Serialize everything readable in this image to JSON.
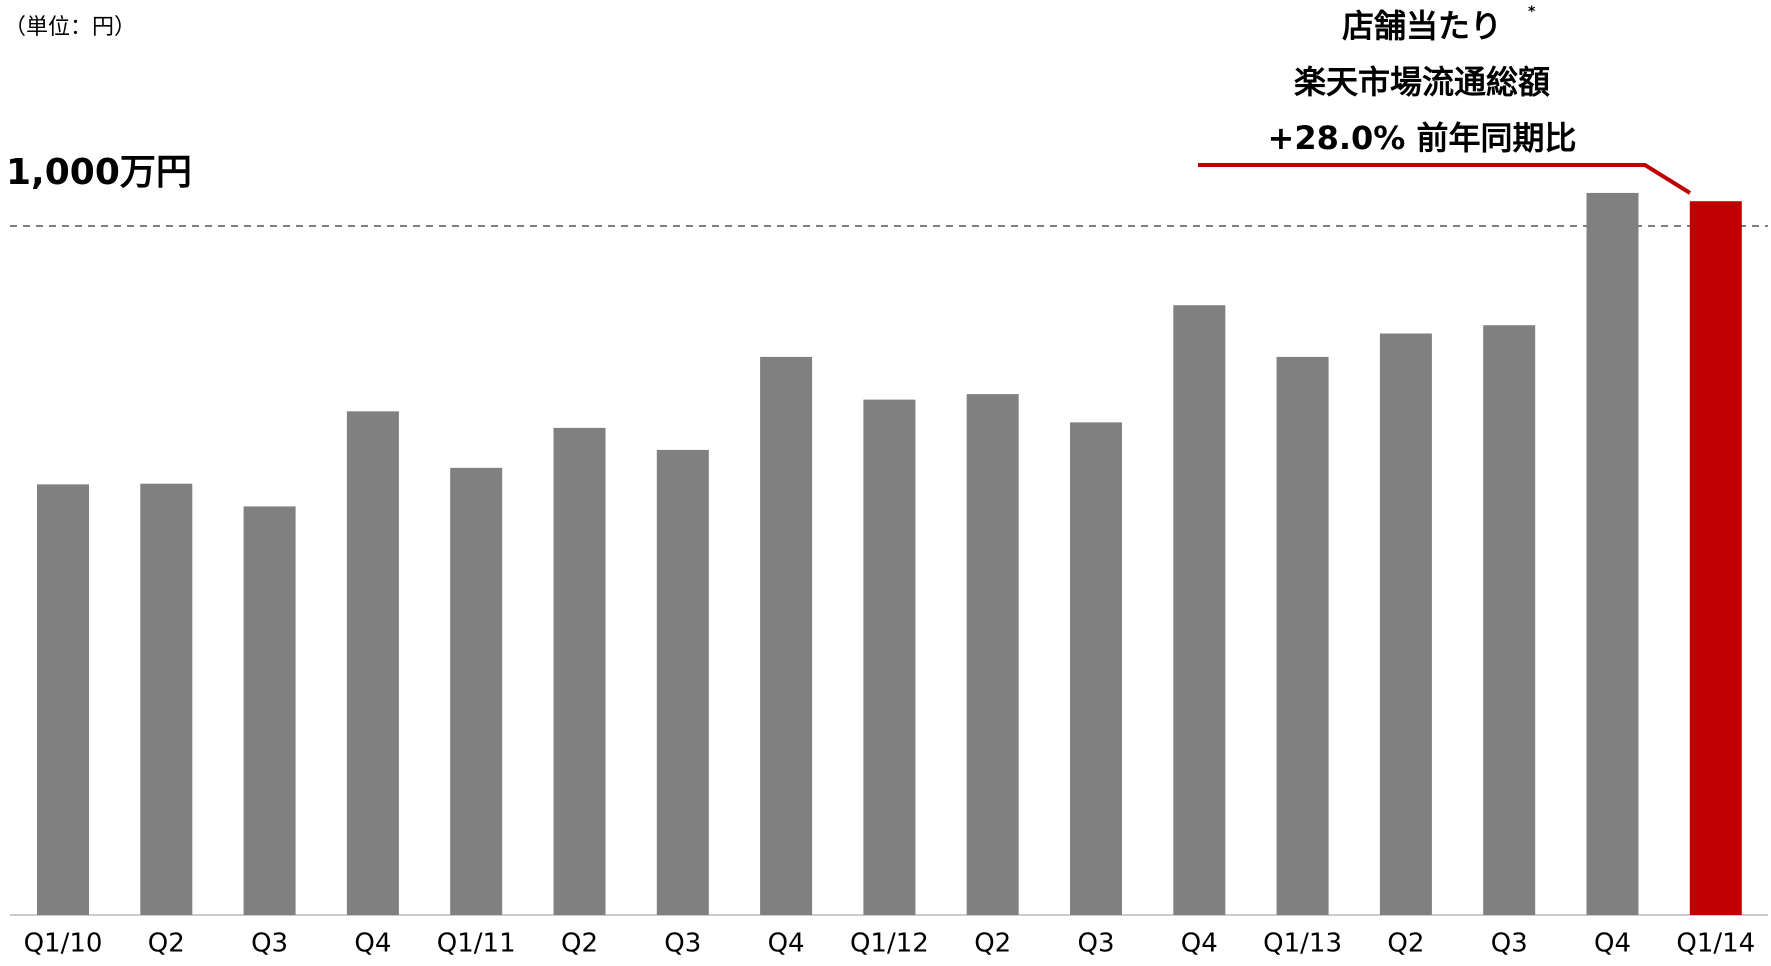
{
  "chart_data": {
    "type": "bar",
    "unit_label": "（単位：円）",
    "categories": [
      "Q1/10",
      "Q2",
      "Q3",
      "Q4",
      "Q1/11",
      "Q2",
      "Q3",
      "Q4",
      "Q1/12",
      "Q2",
      "Q3",
      "Q4",
      "Q1/13",
      "Q2",
      "Q3",
      "Q4",
      "Q1/14"
    ],
    "values": [
      6250000,
      6260000,
      5930000,
      7310000,
      6490000,
      7070000,
      6750000,
      8100000,
      7480000,
      7560000,
      7150000,
      8850000,
      8100000,
      8440000,
      8560000,
      10480000,
      10360000
    ],
    "colors": [
      "#808080",
      "#808080",
      "#808080",
      "#808080",
      "#808080",
      "#808080",
      "#808080",
      "#808080",
      "#808080",
      "#808080",
      "#808080",
      "#808080",
      "#808080",
      "#808080",
      "#808080",
      "#808080",
      "#c00000"
    ],
    "ylim": [
      0,
      13280000
    ],
    "reference_line": {
      "value": 10000000,
      "label": "1,000万円",
      "color": "#c00000"
    },
    "annotation": {
      "lines": [
        "店舗当たり",
        "楽天市場流通総額",
        "+28.0% 前年同期比"
      ],
      "footnote_mark": "*",
      "color": "#c00000"
    }
  }
}
